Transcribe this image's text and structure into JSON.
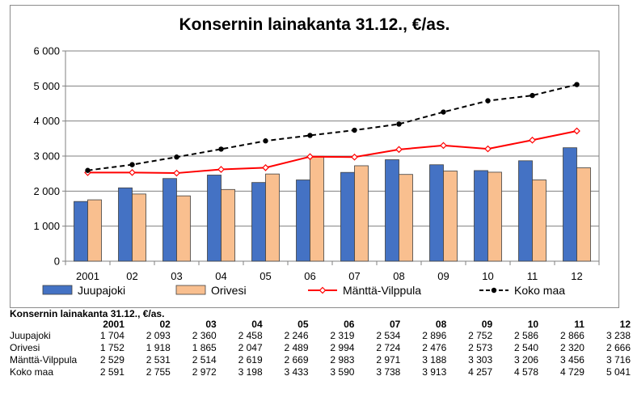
{
  "chart_data": {
    "type": "bar",
    "title": "Konsernin lainakanta 31.12., €/as.",
    "categories": [
      "2001",
      "02",
      "03",
      "04",
      "05",
      "06",
      "07",
      "08",
      "09",
      "10",
      "11",
      "12"
    ],
    "ylim": [
      0,
      6000
    ],
    "yticks": [
      "0",
      "1 000",
      "2 000",
      "3 000",
      "4 000",
      "5 000",
      "6 000"
    ],
    "grid": true,
    "legend": "bottom",
    "series": [
      {
        "name": "Juupajoki",
        "kind": "bar",
        "color": "#4472c4",
        "values": [
          1704,
          2093,
          2360,
          2458,
          2246,
          2319,
          2534,
          2896,
          2752,
          2586,
          2866,
          3238
        ]
      },
      {
        "name": "Orivesi",
        "kind": "bar",
        "color": "#f9bf8f",
        "values": [
          1752,
          1918,
          1865,
          2047,
          2489,
          2994,
          2724,
          2476,
          2573,
          2540,
          2320,
          2666
        ]
      },
      {
        "name": "Mänttä-Vilppula",
        "kind": "line",
        "color": "#ff0000",
        "values": [
          2529,
          2531,
          2514,
          2619,
          2669,
          2983,
          2971,
          3188,
          3303,
          3206,
          3456,
          3716
        ]
      },
      {
        "name": "Koko maa",
        "kind": "dashed-line",
        "color": "#000000",
        "values": [
          2591,
          2755,
          2972,
          3198,
          3433,
          3590,
          3738,
          3913,
          4257,
          4578,
          4729,
          5041
        ]
      }
    ]
  },
  "table": {
    "caption": "Konsernin lainakanta 31.12., €/as.",
    "headers": [
      "2001",
      "02",
      "03",
      "04",
      "05",
      "06",
      "07",
      "08",
      "09",
      "10",
      "11",
      "12"
    ],
    "rows": [
      {
        "label": "Juupajoki",
        "cells": [
          "1 704",
          "2 093",
          "2 360",
          "2 458",
          "2 246",
          "2 319",
          "2 534",
          "2 896",
          "2 752",
          "2 586",
          "2 866",
          "3 238"
        ]
      },
      {
        "label": "Orivesi",
        "cells": [
          "1 752",
          "1 918",
          "1 865",
          "2 047",
          "2 489",
          "2 994",
          "2 724",
          "2 476",
          "2 573",
          "2 540",
          "2 320",
          "2 666"
        ]
      },
      {
        "label": "Mänttä-Vilppula",
        "cells": [
          "2 529",
          "2 531",
          "2 514",
          "2 619",
          "2 669",
          "2 983",
          "2 971",
          "3 188",
          "3 303",
          "3 206",
          "3 456",
          "3 716"
        ]
      },
      {
        "label": "Koko maa",
        "cells": [
          "2 591",
          "2 755",
          "2 972",
          "3 198",
          "3 433",
          "3 590",
          "3 738",
          "3 913",
          "4 257",
          "4 578",
          "4 729",
          "5 041"
        ]
      }
    ]
  }
}
